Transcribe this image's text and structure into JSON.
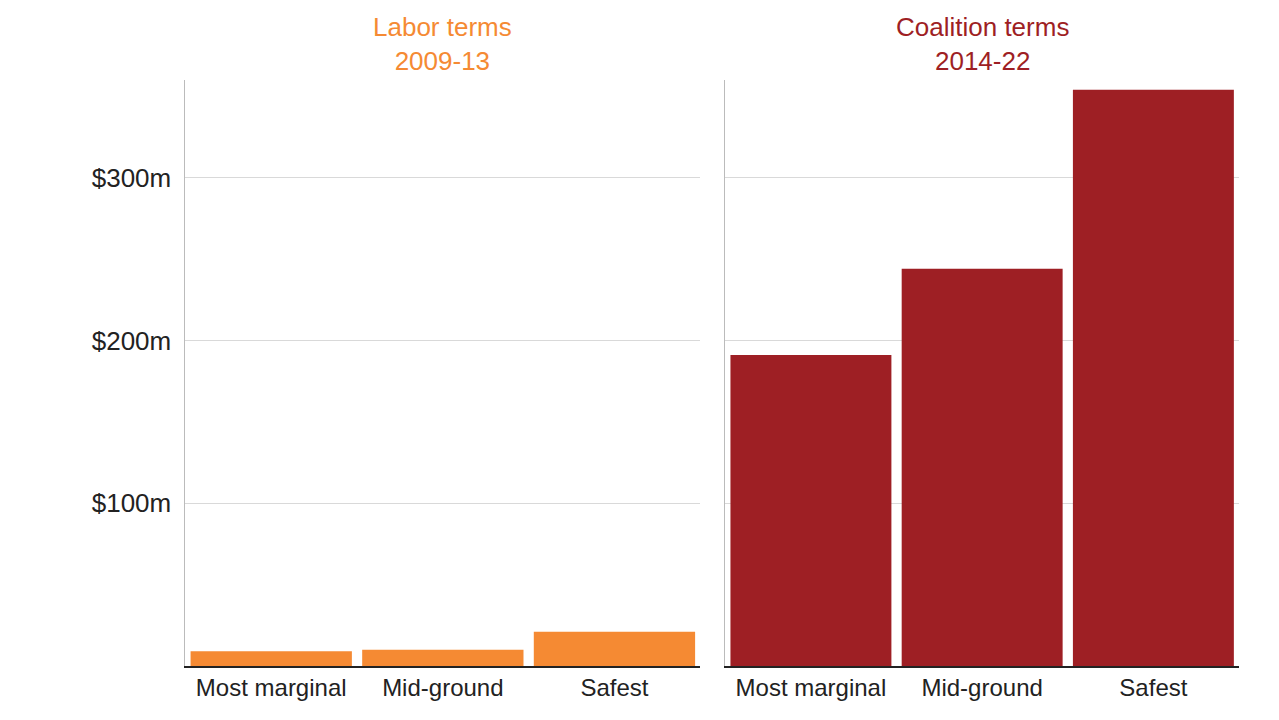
{
  "chart_data": [
    {
      "type": "bar",
      "title": "Labor terms\n2009-13",
      "categories": [
        "Most marginal",
        "Mid-ground",
        "Safest"
      ],
      "values": [
        9,
        10,
        21
      ],
      "color": "#f58a33",
      "ylim": [
        0,
        360
      ],
      "yticks": [
        {
          "value": 100,
          "label": "$100m"
        },
        {
          "value": 200,
          "label": "$200m"
        },
        {
          "value": 300,
          "label": "$300m"
        }
      ],
      "grid": true
    },
    {
      "type": "bar",
      "title": "Coalition terms\n2014-22",
      "categories": [
        "Most marginal",
        "Mid-ground",
        "Safest"
      ],
      "values": [
        191,
        244,
        354
      ],
      "color": "#9e1f24",
      "ylim": [
        0,
        360
      ],
      "yticks": [
        {
          "value": 100,
          "label": "$100m"
        },
        {
          "value": 200,
          "label": "$200m"
        },
        {
          "value": 300,
          "label": "$300m"
        }
      ],
      "grid": true,
      "tick_labels": "x"
    }
  ]
}
